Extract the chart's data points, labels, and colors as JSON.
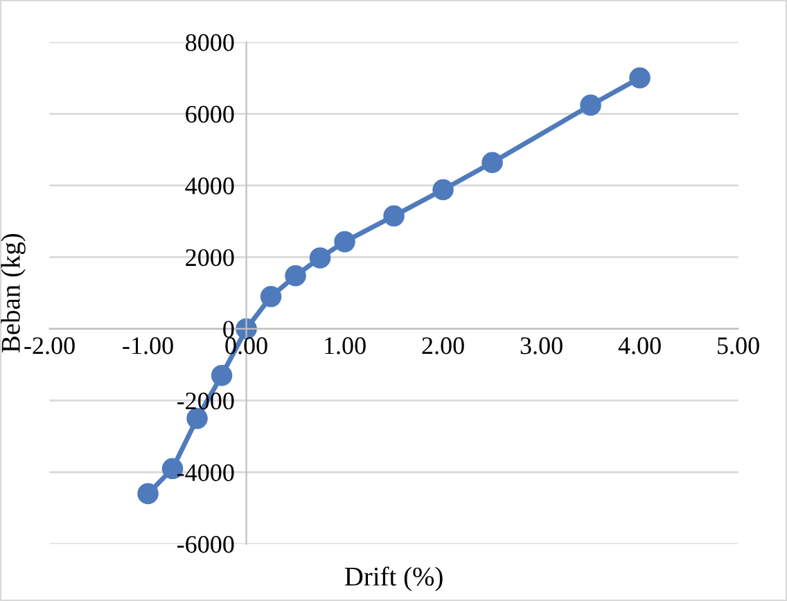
{
  "chart_data": {
    "type": "line",
    "xlabel": "Drift (%)",
    "ylabel": "Beban (kg)",
    "series": [
      {
        "color": "#4f7bbd",
        "x": [
          -1.0,
          -0.75,
          -0.5,
          -0.25,
          0,
          0.25,
          0.5,
          0.75,
          1.0,
          1.5,
          2.0,
          2.5,
          3.5,
          4.0
        ],
        "values": [
          -4600,
          -3900,
          -2500,
          -1300,
          0,
          900,
          1480,
          1980,
          2430,
          3150,
          3880,
          4640,
          6240,
          7000
        ]
      }
    ],
    "xlim": [
      -2,
      5
    ],
    "xticks": [
      {
        "value": -2,
        "label": "-2.00"
      },
      {
        "value": -1,
        "label": "-1.00"
      },
      {
        "value": 0,
        "label": "0.00"
      },
      {
        "value": 1,
        "label": "1.00"
      },
      {
        "value": 2,
        "label": "2.00"
      },
      {
        "value": 3,
        "label": "3.00"
      },
      {
        "value": 4,
        "label": "4.00"
      },
      {
        "value": 5,
        "label": "5.00"
      }
    ],
    "ylim": [
      -6000,
      8000
    ],
    "yticks": [
      -6000,
      -4000,
      -2000,
      0,
      2000,
      4000,
      6000,
      8000
    ],
    "grid": "y",
    "marker": "circle",
    "line_style": "solid"
  }
}
